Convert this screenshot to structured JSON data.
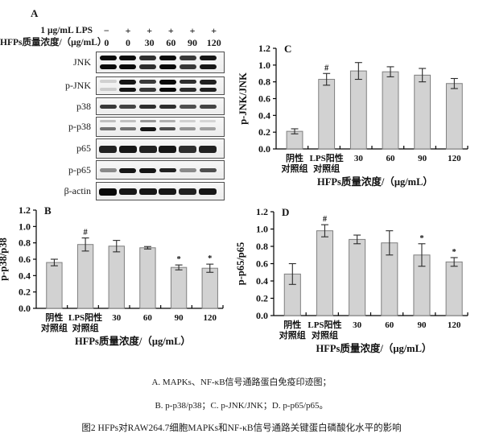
{
  "colors": {
    "bar_fill": "#d2d2d2",
    "bar_stroke": "#7f7f7f",
    "axis": "#000000",
    "error_bar": "#2b2b2b",
    "band": "#0a0a0a",
    "background": "#ffffff"
  },
  "panel_a": {
    "label": "A",
    "header_rows": [
      {
        "label": "1 μg/mL LPS",
        "values": [
          "−",
          "+",
          "+",
          "+",
          "+",
          "+"
        ]
      },
      {
        "label": "HFPs质量浓度/（μg/mL）",
        "values": [
          "0",
          "0",
          "30",
          "60",
          "90",
          "120"
        ]
      }
    ],
    "blots": [
      {
        "label": "JNK",
        "pattern": "double",
        "lanes": [
          1.0,
          1.0,
          0.85,
          1.0,
          0.8,
          0.95
        ]
      },
      {
        "label": "p-JNK",
        "pattern": "double",
        "lanes": [
          0.15,
          0.95,
          0.8,
          1.0,
          0.85,
          0.9
        ]
      },
      {
        "label": "p38",
        "pattern": "single",
        "lanes": [
          0.8,
          0.75,
          0.85,
          0.85,
          0.7,
          0.75
        ]
      },
      {
        "label": "p-p38",
        "pattern": "double-faint",
        "lanes": [
          0.5,
          0.5,
          0.9,
          0.65,
          0.35,
          0.3
        ]
      },
      {
        "label": "p65",
        "pattern": "single-thick",
        "lanes": [
          0.9,
          0.95,
          0.9,
          0.95,
          0.85,
          0.9
        ]
      },
      {
        "label": "p-p65",
        "pattern": "single",
        "lanes": [
          0.45,
          0.95,
          0.95,
          0.9,
          0.45,
          0.7
        ]
      },
      {
        "label": "β-actin",
        "pattern": "single-thick",
        "lanes": [
          1.0,
          0.95,
          0.95,
          0.95,
          0.9,
          0.95
        ]
      }
    ]
  },
  "chart_data": [
    {
      "type": "bar",
      "panel": "B",
      "title": "",
      "ylabel": "p-p38/p38",
      "xlabel": "HFPs质量浓度/（μg/mL）",
      "categories": [
        [
          "阴性",
          "对照组"
        ],
        [
          "LPS阳性",
          "对照组"
        ],
        [
          "30"
        ],
        [
          "60"
        ],
        [
          "90"
        ],
        [
          "120"
        ]
      ],
      "values": [
        0.56,
        0.78,
        0.76,
        0.74,
        0.5,
        0.49
      ],
      "errors": [
        0.04,
        0.08,
        0.07,
        0.015,
        0.03,
        0.05
      ],
      "annotations": [
        "",
        "#",
        "",
        "",
        "*",
        "*"
      ],
      "ylim": [
        0,
        1.2
      ],
      "ytick_step": 0.2,
      "grid": false,
      "legend": null
    },
    {
      "type": "bar",
      "panel": "C",
      "title": "",
      "ylabel": "p-JNK/JNK",
      "xlabel": "HFPs质量浓度/（μg/mL）",
      "categories": [
        [
          "阴性",
          "对照组"
        ],
        [
          "LPS阳性",
          "对照组"
        ],
        [
          "30"
        ],
        [
          "60"
        ],
        [
          "90"
        ],
        [
          "120"
        ]
      ],
      "values": [
        0.21,
        0.83,
        0.93,
        0.92,
        0.88,
        0.78
      ],
      "errors": [
        0.03,
        0.07,
        0.1,
        0.06,
        0.08,
        0.06
      ],
      "annotations": [
        "",
        "#",
        "",
        "",
        "",
        ""
      ],
      "ylim": [
        0,
        1.2
      ],
      "ytick_step": 0.2,
      "grid": false,
      "legend": null
    },
    {
      "type": "bar",
      "panel": "D",
      "title": "",
      "ylabel": "p-p65/p65",
      "xlabel": "HFPs质量浓度/（μg/mL）",
      "categories": [
        [
          "阴性",
          "对照组"
        ],
        [
          "LPS阳性",
          "对照组"
        ],
        [
          "30"
        ],
        [
          "60"
        ],
        [
          "90"
        ],
        [
          "120"
        ]
      ],
      "values": [
        0.48,
        0.98,
        0.88,
        0.84,
        0.7,
        0.62
      ],
      "errors": [
        0.12,
        0.07,
        0.05,
        0.14,
        0.13,
        0.05
      ],
      "annotations": [
        "",
        "#",
        "",
        "",
        "*",
        "*"
      ],
      "ylim": [
        0,
        1.2
      ],
      "ytick_step": 0.2,
      "grid": false,
      "legend": null
    }
  ],
  "caption": {
    "line1": "A. MAPKs、NF-κB信号通路蛋白免疫印迹图；",
    "line2": "B. p-p38/p38；C. p-JNK/JNK；D. p-p65/p65。",
    "line3": "图2 HFPs对RAW264.7细胞MAPKs和NF-κB信号通路关键蛋白磷酸化水平的影响"
  }
}
